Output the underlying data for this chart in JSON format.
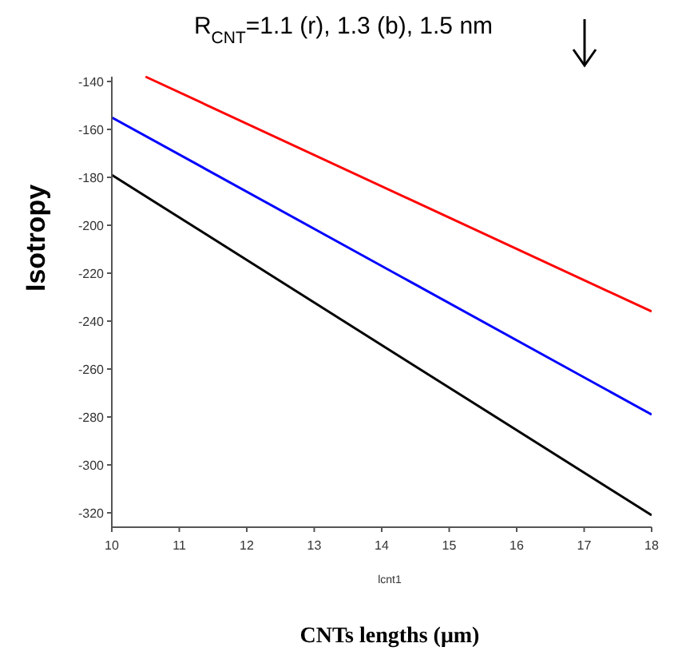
{
  "chart_data": {
    "type": "line",
    "title": "R$_{CNT}$=1.1 (r), 1.3 (b), 1.5 nm",
    "xlabel": "lcnt1",
    "ylabel": "Isotropy",
    "annotations": [
      "CNTs lengths (μm)"
    ],
    "series": [
      {
        "color": "#ff0000",
        "x": [
          10.5,
          18
        ],
        "values": [
          -138,
          -236
        ]
      },
      {
        "color": "#0000ff",
        "x": [
          10,
          18
        ],
        "values": [
          -155,
          -279
        ]
      },
      {
        "color": "#000000",
        "x": [
          10,
          18
        ],
        "values": [
          -179,
          -321
        ]
      }
    ],
    "xlim": [
      10,
      18
    ],
    "ylim": [
      -326,
      -138
    ],
    "xticks": [
      10,
      11,
      12,
      13,
      14,
      15,
      16,
      17,
      18
    ],
    "yticks": [
      -140,
      -160,
      -180,
      -200,
      -220,
      -240,
      -260,
      -280,
      -300,
      -320
    ],
    "grid": false,
    "marker": "none",
    "line_style": "solid"
  }
}
